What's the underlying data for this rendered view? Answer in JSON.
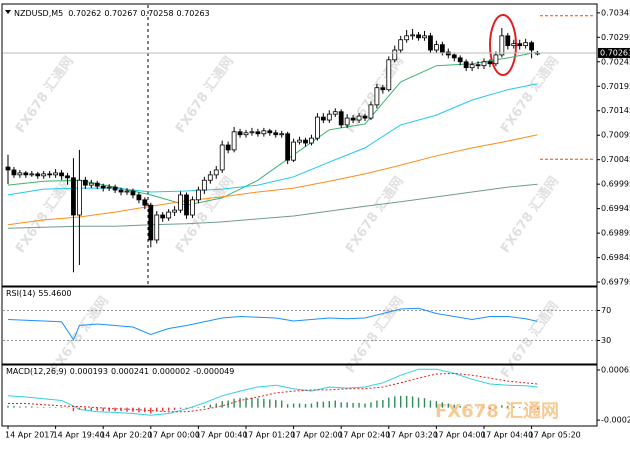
{
  "watermark": "FX678 汇通网",
  "chart_data": [
    {
      "type": "candlestick",
      "symbol": "NZDUSD,M5",
      "categories": [
        "14 Apr 2017",
        null,
        null,
        null,
        null,
        null,
        null,
        null,
        "14 Apr 19:40",
        null,
        null,
        null,
        null,
        null,
        null,
        null,
        "14 Apr 20:20",
        null,
        null,
        null,
        null,
        null,
        null,
        null,
        "17 Apr 00:00",
        null,
        null,
        null,
        null,
        null,
        null,
        null,
        "17 Apr 00:40",
        null,
        null,
        null,
        null,
        null,
        null,
        null,
        "17 Apr 01:20",
        null,
        null,
        null,
        null,
        null,
        null,
        null,
        "17 Apr 02:00",
        null,
        null,
        null,
        null,
        null,
        null,
        null,
        "17 Apr 02:40",
        null,
        null,
        null,
        null,
        null,
        null,
        null,
        "17 Apr 03:20",
        null,
        null,
        null,
        null,
        null,
        null,
        null,
        "17 Apr 04:00",
        null,
        null,
        null,
        null,
        null,
        null,
        null,
        "17 Apr 04:40",
        null,
        null,
        null,
        null,
        null,
        null,
        null,
        "17 Apr 05:20",
        null
      ],
      "open": [
        0.7003,
        0.70024,
        0.70014,
        0.70018,
        0.70014,
        0.70016,
        0.70012,
        0.70016,
        0.70014,
        0.70018,
        0.70012,
        0.70008,
        0.69932,
        0.70003,
        0.69993,
        0.69997,
        0.69991,
        0.69987,
        0.69989,
        0.69983,
        0.69979,
        0.69981,
        0.69973,
        0.69963,
        0.69952,
        0.69881,
        0.69932,
        0.69926,
        0.69938,
        0.69942,
        0.69973,
        0.69932,
        0.69963,
        0.69983,
        0.70003,
        0.70014,
        0.70024,
        0.70075,
        0.70065,
        0.70102,
        0.70096,
        0.701,
        0.70102,
        0.70098,
        0.70104,
        0.701,
        0.70096,
        0.70098,
        0.70044,
        0.70081,
        0.70085,
        0.70079,
        0.70089,
        0.70132,
        0.70126,
        0.70138,
        0.70143,
        0.70116,
        0.7013,
        0.70126,
        0.70134,
        0.7013,
        0.70157,
        0.70192,
        0.70188,
        0.70249,
        0.70269,
        0.7029,
        0.70298,
        0.703,
        0.70294,
        0.70298,
        0.70269,
        0.7028,
        0.70265,
        0.70259,
        0.70253,
        0.70245,
        0.70233,
        0.70239,
        0.70237,
        0.70245,
        0.70241,
        0.70259,
        0.70298,
        0.70278,
        0.70282,
        0.70278,
        0.70284,
        0.70262
      ],
      "high": [
        0.70055,
        0.7003,
        0.70024,
        0.70022,
        0.70022,
        0.7002,
        0.70022,
        0.70022,
        0.70026,
        0.70024,
        0.70018,
        0.70048,
        0.70065,
        0.7001,
        0.70004,
        0.70002,
        0.69996,
        0.69995,
        0.69994,
        0.69988,
        0.69987,
        0.69986,
        0.69978,
        0.69968,
        0.69957,
        0.6994,
        0.69938,
        0.69944,
        0.6995,
        0.6998,
        0.69978,
        0.6997,
        0.6999,
        0.7001,
        0.70022,
        0.70032,
        0.70084,
        0.70082,
        0.70112,
        0.70108,
        0.70106,
        0.7011,
        0.70108,
        0.7011,
        0.70108,
        0.70106,
        0.70104,
        0.70102,
        0.70088,
        0.70092,
        0.7009,
        0.70096,
        0.7014,
        0.7014,
        0.70146,
        0.7015,
        0.70148,
        0.70138,
        0.70136,
        0.7014,
        0.70138,
        0.70164,
        0.702,
        0.70198,
        0.70256,
        0.70278,
        0.70298,
        0.7031,
        0.70312,
        0.70306,
        0.70308,
        0.70304,
        0.70288,
        0.70286,
        0.70272,
        0.70264,
        0.70258,
        0.7025,
        0.70246,
        0.70246,
        0.70252,
        0.7025,
        0.70266,
        0.70314,
        0.70304,
        0.7029,
        0.7029,
        0.70292,
        0.70288,
        0.70267
      ],
      "low": [
        0.69995,
        0.70008,
        0.70008,
        0.70008,
        0.7001,
        0.70006,
        0.70006,
        0.70008,
        0.70008,
        0.70004,
        0.69994,
        0.69815,
        0.6983,
        0.69985,
        0.69987,
        0.69985,
        0.6998,
        0.69981,
        0.69977,
        0.69972,
        0.69973,
        0.69966,
        0.69956,
        0.69944,
        0.69866,
        0.69874,
        0.69918,
        0.6992,
        0.6993,
        0.69936,
        0.69924,
        0.69926,
        0.69956,
        0.69975,
        0.69996,
        0.70006,
        0.70018,
        0.70058,
        0.7006,
        0.7009,
        0.7009,
        0.70094,
        0.70092,
        0.70092,
        0.70094,
        0.7009,
        0.7009,
        0.70036,
        0.7004,
        0.70076,
        0.70072,
        0.70074,
        0.70084,
        0.7012,
        0.7012,
        0.70132,
        0.7011,
        0.7011,
        0.7012,
        0.7012,
        0.70124,
        0.70126,
        0.7015,
        0.7018,
        0.70184,
        0.70244,
        0.70262,
        0.70284,
        0.7029,
        0.70288,
        0.70288,
        0.70262,
        0.70262,
        0.70258,
        0.70252,
        0.70246,
        0.70238,
        0.70226,
        0.70226,
        0.7023,
        0.7023,
        0.70234,
        0.70236,
        0.70254,
        0.7027,
        0.70272,
        0.7027,
        0.70272,
        0.70252,
        0.70258
      ],
      "close": [
        0.70024,
        0.70014,
        0.70018,
        0.70014,
        0.70016,
        0.70012,
        0.70016,
        0.70014,
        0.70018,
        0.70012,
        0.70008,
        0.69932,
        0.70003,
        0.69993,
        0.69997,
        0.69991,
        0.69987,
        0.69989,
        0.69983,
        0.69979,
        0.69981,
        0.69973,
        0.69963,
        0.69952,
        0.69881,
        0.69932,
        0.69926,
        0.69938,
        0.69942,
        0.69973,
        0.69932,
        0.69963,
        0.69983,
        0.70003,
        0.70014,
        0.70024,
        0.70075,
        0.70065,
        0.70102,
        0.70096,
        0.701,
        0.70102,
        0.70098,
        0.70104,
        0.701,
        0.70096,
        0.70098,
        0.70044,
        0.70081,
        0.70085,
        0.70079,
        0.70089,
        0.70132,
        0.70126,
        0.70138,
        0.70143,
        0.70116,
        0.7013,
        0.70126,
        0.70134,
        0.7013,
        0.70157,
        0.70192,
        0.70188,
        0.70249,
        0.70269,
        0.7029,
        0.70298,
        0.703,
        0.70294,
        0.70298,
        0.70269,
        0.7028,
        0.70265,
        0.70259,
        0.70253,
        0.70245,
        0.70233,
        0.70239,
        0.70237,
        0.70245,
        0.70241,
        0.70259,
        0.70298,
        0.70278,
        0.70282,
        0.70278,
        0.70284,
        0.70269,
        0.70263
      ],
      "overlays": [
        {
          "color": "#3cb371",
          "x": [
            0,
            6,
            12,
            18,
            24,
            30,
            36,
            42,
            48,
            54,
            60,
            66,
            72,
            78,
            84,
            89
          ],
          "values": [
            0.69993,
            0.70001,
            0.70003,
            0.69989,
            0.69973,
            0.69952,
            0.69967,
            0.70003,
            0.70055,
            0.70106,
            0.70118,
            0.70204,
            0.70237,
            0.70241,
            0.70253,
            0.70265
          ]
        },
        {
          "color": "#1ec8f0",
          "x": [
            0,
            6,
            12,
            18,
            24,
            30,
            36,
            42,
            48,
            54,
            60,
            66,
            72,
            78,
            84,
            89
          ],
          "values": [
            0.69973,
            0.69985,
            0.69987,
            0.69987,
            0.69979,
            0.69981,
            0.69985,
            0.69993,
            0.7001,
            0.7004,
            0.70069,
            0.70116,
            0.70136,
            0.70167,
            0.70188,
            0.702
          ]
        },
        {
          "color": "#ff8c1a",
          "x": [
            0,
            6,
            12,
            18,
            24,
            30,
            36,
            42,
            48,
            54,
            60,
            66,
            72,
            78,
            84,
            89
          ],
          "values": [
            0.69912,
            0.69922,
            0.69928,
            0.69938,
            0.6995,
            0.69961,
            0.69969,
            0.69979,
            0.69987,
            0.70001,
            0.70016,
            0.70034,
            0.70053,
            0.70069,
            0.70083,
            0.70096
          ]
        },
        {
          "color": "#6f9c8c",
          "x": [
            0,
            6,
            12,
            18,
            24,
            30,
            36,
            42,
            48,
            54,
            60,
            66,
            72,
            78,
            84,
            89
          ],
          "values": [
            0.69905,
            0.69907,
            0.69909,
            0.69909,
            0.69912,
            0.69914,
            0.69918,
            0.69924,
            0.6993,
            0.6994,
            0.6995,
            0.69959,
            0.69969,
            0.69979,
            0.69989,
            0.69995
          ]
        }
      ],
      "levels": [
        0.70339,
        0.70046
      ],
      "level_color": "#ff4500",
      "ylim": [
        0.69789,
        0.70361
      ],
      "yticks": [
        0.70345,
        0.70295,
        0.70245,
        0.70195,
        0.70145,
        0.70095,
        0.70045,
        0.69995,
        0.69945,
        0.69895,
        0.69845,
        0.69795
      ]
    },
    {
      "type": "line",
      "title": "RSI(14)",
      "current": {
        "value": 55.46,
        "label": "55.4600"
      },
      "color": "#1e90ff",
      "x": [
        0,
        3,
        6,
        9,
        11,
        12,
        15,
        18,
        21,
        24,
        27,
        30,
        33,
        36,
        39,
        42,
        45,
        48,
        51,
        54,
        57,
        60,
        63,
        66,
        69,
        72,
        75,
        78,
        81,
        84,
        87,
        89
      ],
      "values": [
        58,
        57,
        56,
        55,
        31,
        50,
        52,
        50,
        48,
        38,
        46,
        50,
        55,
        60,
        62,
        61,
        60,
        56,
        58,
        60,
        59,
        60,
        66,
        72,
        73,
        66,
        62,
        58,
        62,
        62,
        59,
        55.46
      ],
      "ylim": [
        0,
        100
      ],
      "yticks": [
        70,
        30
      ],
      "grid": true
    },
    {
      "type": "macd",
      "title": "MACD(12,26,9)",
      "readings": [
        0.000193,
        0.000241,
        2e-06,
        -4.9e-05
      ],
      "histogram": [
        3e-05,
        3e-05,
        2e-05,
        2e-05,
        2e-05,
        1e-05,
        1e-05,
        1e-05,
        1e-05,
        1e-05,
        0,
        -6e-05,
        -4e-05,
        -4e-05,
        -5e-05,
        -5e-05,
        -6e-05,
        -6e-05,
        -6e-05,
        -6e-05,
        -7e-05,
        -7e-05,
        -8e-05,
        -8e-05,
        -0.0001,
        -6e-05,
        -6e-05,
        -5e-05,
        -4e-05,
        -2e-05,
        -3e-05,
        -1e-05,
        1e-05,
        3e-05,
        5e-05,
        7e-05,
        0.00011,
        0.00012,
        0.00015,
        0.00016,
        0.00017,
        0.00017,
        0.00016,
        0.00015,
        0.00014,
        0.00013,
        0.00012,
        6e-05,
        7e-05,
        7e-05,
        6e-05,
        7e-05,
        0.0001,
        0.0001,
        0.00011,
        0.00012,
        9e-05,
        9e-05,
        8e-05,
        8e-05,
        7e-05,
        9e-05,
        0.00012,
        0.00013,
        0.00017,
        0.00019,
        0.0002,
        0.0002,
        0.00019,
        0.00017,
        0.00016,
        0.00012,
        0.00011,
        9e-05,
        7e-05,
        5e-05,
        3e-05,
        1e-05,
        0,
        -1e-05,
        -1e-05,
        -2e-05,
        0,
        4e-05,
        3e-05,
        2e-05,
        1e-05,
        1e-05,
        -1e-05,
        -2e-05
      ],
      "up_color": "#2e8b57",
      "down_color": "#e03030",
      "x": [
        0,
        3,
        6,
        9,
        11,
        12,
        15,
        18,
        21,
        24,
        27,
        30,
        33,
        36,
        39,
        42,
        45,
        48,
        51,
        54,
        57,
        60,
        63,
        66,
        69,
        72,
        75,
        78,
        81,
        84,
        87,
        89
      ],
      "series": [
        {
          "color": "#30d0e0",
          "values": [
            0.0002,
            0.00018,
            0.00015,
            0.00012,
            3e-05,
            -3e-05,
            -7e-05,
            -8e-05,
            -0.0001,
            -0.00013,
            -0.0001,
            -2e-05,
            8e-05,
            0.0002,
            0.00028,
            0.00035,
            0.00038,
            0.00032,
            0.00028,
            0.00035,
            0.00033,
            0.00035,
            0.00042,
            0.00055,
            0.00065,
            0.00065,
            0.00058,
            0.00048,
            0.0004,
            0.00038,
            0.00037,
            0.00035
          ]
        },
        {
          "color": "#e02020",
          "dashed": true,
          "values": [
            7e-05,
            7e-05,
            5e-05,
            3e-05,
            2e-05,
            2e-05,
            0,
            -2e-05,
            -3e-05,
            -5e-05,
            -7e-05,
            -7e-05,
            -3e-05,
            3e-05,
            0.00012,
            0.00018,
            0.00025,
            0.00028,
            0.0003,
            0.0003,
            0.00032,
            0.00032,
            0.00035,
            0.00042,
            0.0005,
            0.00057,
            0.00058,
            0.00055,
            0.0005,
            0.00045,
            0.00042,
            0.0004
          ]
        }
      ],
      "ylim": [
        -0.000294,
        0.000705
      ],
      "yticks": [
        0.000638,
        -0.000211
      ]
    }
  ]
}
